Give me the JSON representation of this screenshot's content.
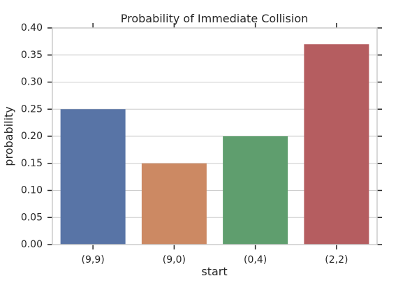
{
  "chart_data": {
    "type": "bar",
    "title": "Probability of Immediate Collision",
    "xlabel": "start",
    "ylabel": "probability",
    "categories": [
      "(9,9)",
      "(9,0)",
      "(0,4)",
      "(2,2)"
    ],
    "values": [
      0.25,
      0.15,
      0.2,
      0.37
    ],
    "ylim": [
      0,
      0.4
    ],
    "yticks": [
      "0.00",
      "0.05",
      "0.10",
      "0.15",
      "0.20",
      "0.25",
      "0.30",
      "0.35",
      "0.40"
    ],
    "grid": "y-major",
    "colors": [
      "#5874a6",
      "#cc8963",
      "#5f9e6e",
      "#b55d60"
    ],
    "grid_color": "#cccccc",
    "axis_color": "#262626"
  }
}
